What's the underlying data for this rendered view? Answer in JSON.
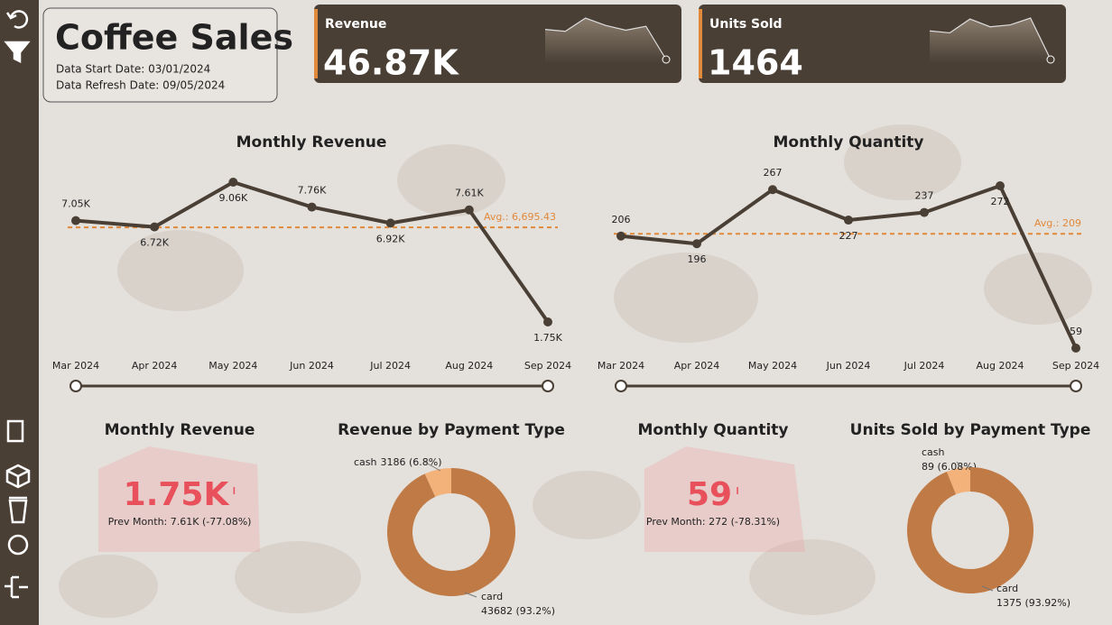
{
  "header": {
    "title": "Coffee Sales",
    "start_date": "Data Start Date: 03/01/2024",
    "refresh_date": "Data Refresh Date: 09/05/2024"
  },
  "cards": [
    {
      "label": "Revenue",
      "value": "46.87K"
    },
    {
      "label": "Units Sold",
      "value": "1464"
    }
  ],
  "chart_data": [
    {
      "type": "line",
      "title": "Monthly Revenue",
      "color": "#4a3f35",
      "categories": [
        "Mar 2024",
        "Apr 2024",
        "May 2024",
        "Jun 2024",
        "Jul 2024",
        "Aug 2024",
        "Sep 2024"
      ],
      "values": [
        7050,
        6720,
        9060,
        7760,
        6920,
        7610,
        1750
      ],
      "value_labels": [
        "7.05K",
        "6.72K",
        "9.06K",
        "7.76K",
        "6.92K",
        "7.61K",
        "1.75K"
      ],
      "average": {
        "value": 6695.43,
        "label": "Avg.: 6,695.43",
        "color": "#e0893a"
      }
    },
    {
      "type": "line",
      "title": "Monthly Quantity",
      "color": "#4a3f35",
      "categories": [
        "Mar 2024",
        "Apr 2024",
        "May 2024",
        "Jun 2024",
        "Jul 2024",
        "Aug 2024",
        "Sep 2024"
      ],
      "values": [
        206,
        196,
        267,
        227,
        237,
        272,
        59
      ],
      "average": {
        "value": 209,
        "label": "Avg.: 209",
        "color": "#e0893a"
      }
    },
    {
      "type": "kpi",
      "title": "Monthly Revenue",
      "value": "1.75K",
      "note": "Prev Month: 7.61K (-77.08%)",
      "color": "#e8505b"
    },
    {
      "type": "donut",
      "title": "Revenue by Payment Type",
      "categories": [
        "cash",
        "card"
      ],
      "values": [
        3186,
        43682
      ],
      "value_labels": [
        "3186 (6.8%)",
        "43682 (93.2%)"
      ],
      "colors": [
        "#f2b27a",
        "#c07a45"
      ]
    },
    {
      "type": "kpi",
      "title": "Monthly Quantity",
      "value": "59",
      "note": "Prev Month: 272 (-78.31%)",
      "color": "#e8505b"
    },
    {
      "type": "donut",
      "title": "Units Sold by Payment Type",
      "categories": [
        "cash",
        "card"
      ],
      "values": [
        89,
        1375
      ],
      "value_labels": [
        "89 (6.08%)",
        "1375 (93.92%)"
      ],
      "colors": [
        "#f2b27a",
        "#c07a45"
      ]
    }
  ]
}
